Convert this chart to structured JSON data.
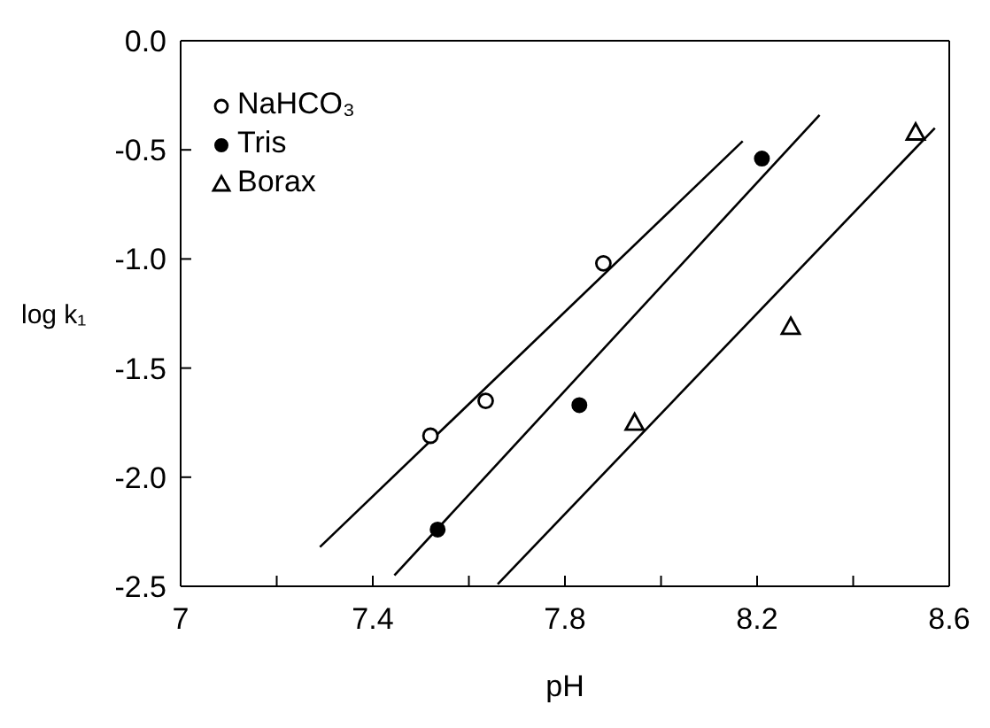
{
  "chart_data": {
    "type": "scatter",
    "xlabel": "pH",
    "ylabel": "log k₁",
    "xlim": [
      7,
      8.6
    ],
    "ylim": [
      -2.5,
      0
    ],
    "xticks": [
      7,
      {
        "value": 7.2,
        "label": null
      },
      7.4,
      {
        "value": 7.6,
        "label": null
      },
      7.8,
      {
        "value": 8.0,
        "label": null
      },
      8.2,
      {
        "value": 8.4,
        "label": null
      },
      8.6
    ],
    "yticks": [
      {
        "value": -2.5,
        "label": "-2.5"
      },
      {
        "value": -2,
        "label": "-2.0"
      },
      -1.5,
      {
        "value": -1,
        "label": "-1.0"
      },
      -0.5,
      {
        "value": 0,
        "label": "0.0"
      }
    ],
    "legend": "top left",
    "series": [
      {
        "name": "NaHCO₃",
        "marker": "circle-open",
        "color": "#000000",
        "x": [
          7.52,
          7.635,
          7.88
        ],
        "values": [
          -1.81,
          -1.65,
          -1.02
        ]
      },
      {
        "name": "Tris",
        "marker": "circle",
        "color": "#000000",
        "x": [
          7.535,
          7.83,
          8.21
        ],
        "values": [
          -2.24,
          -1.67,
          -0.54
        ]
      },
      {
        "name": "Borax",
        "marker": "triangle-open",
        "color": "#000000",
        "x": [
          7.945,
          8.27,
          8.53
        ],
        "values": [
          -1.75,
          -1.31,
          -0.42
        ]
      },
      {
        "type": "line",
        "marker": "none",
        "color": "#000000",
        "x": [
          7.29,
          8.17
        ],
        "values": [
          -2.32,
          -0.46
        ]
      },
      {
        "type": "line",
        "marker": "none",
        "color": "#000000",
        "x": [
          7.445,
          8.33
        ],
        "values": [
          -2.45,
          -0.34
        ]
      },
      {
        "type": "line",
        "marker": "none",
        "color": "#000000",
        "x": [
          7.66,
          8.57
        ],
        "values": [
          -2.49,
          -0.4
        ]
      }
    ]
  }
}
